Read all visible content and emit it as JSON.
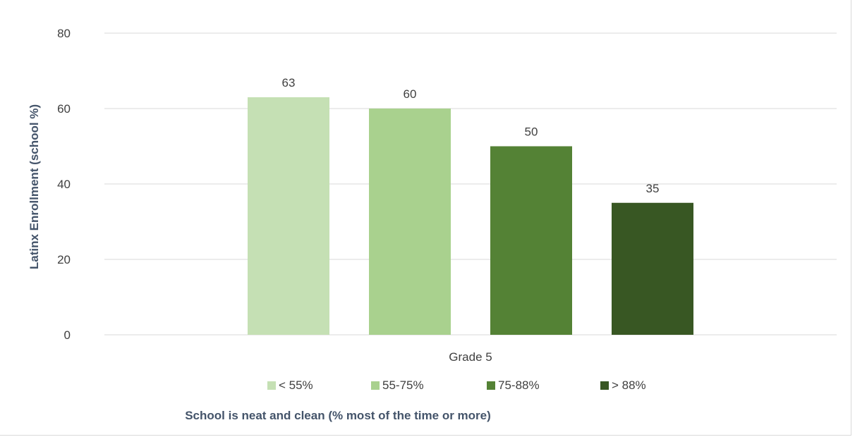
{
  "chart_data": {
    "type": "bar",
    "categories": [
      "Grade 5"
    ],
    "series": [
      {
        "name": "< 55%",
        "values": [
          63
        ],
        "color": "#c5e0b4"
      },
      {
        "name": "55-75%",
        "values": [
          60
        ],
        "color": "#a9d18e"
      },
      {
        "name": "75-88%",
        "values": [
          50
        ],
        "color": "#548235"
      },
      {
        "name": "> 88%",
        "values": [
          35
        ],
        "color": "#385723"
      }
    ],
    "data_labels": [
      "63",
      "60",
      "50",
      "35"
    ],
    "ylabel": "Latinx Enrollment  (school %)",
    "xlabel": "School is neat and clean (% most of the time or more)",
    "ylim": [
      0,
      80
    ],
    "yticks": [
      "0",
      "20",
      "40",
      "60",
      "80"
    ],
    "grid": true,
    "legend": "bottom"
  }
}
